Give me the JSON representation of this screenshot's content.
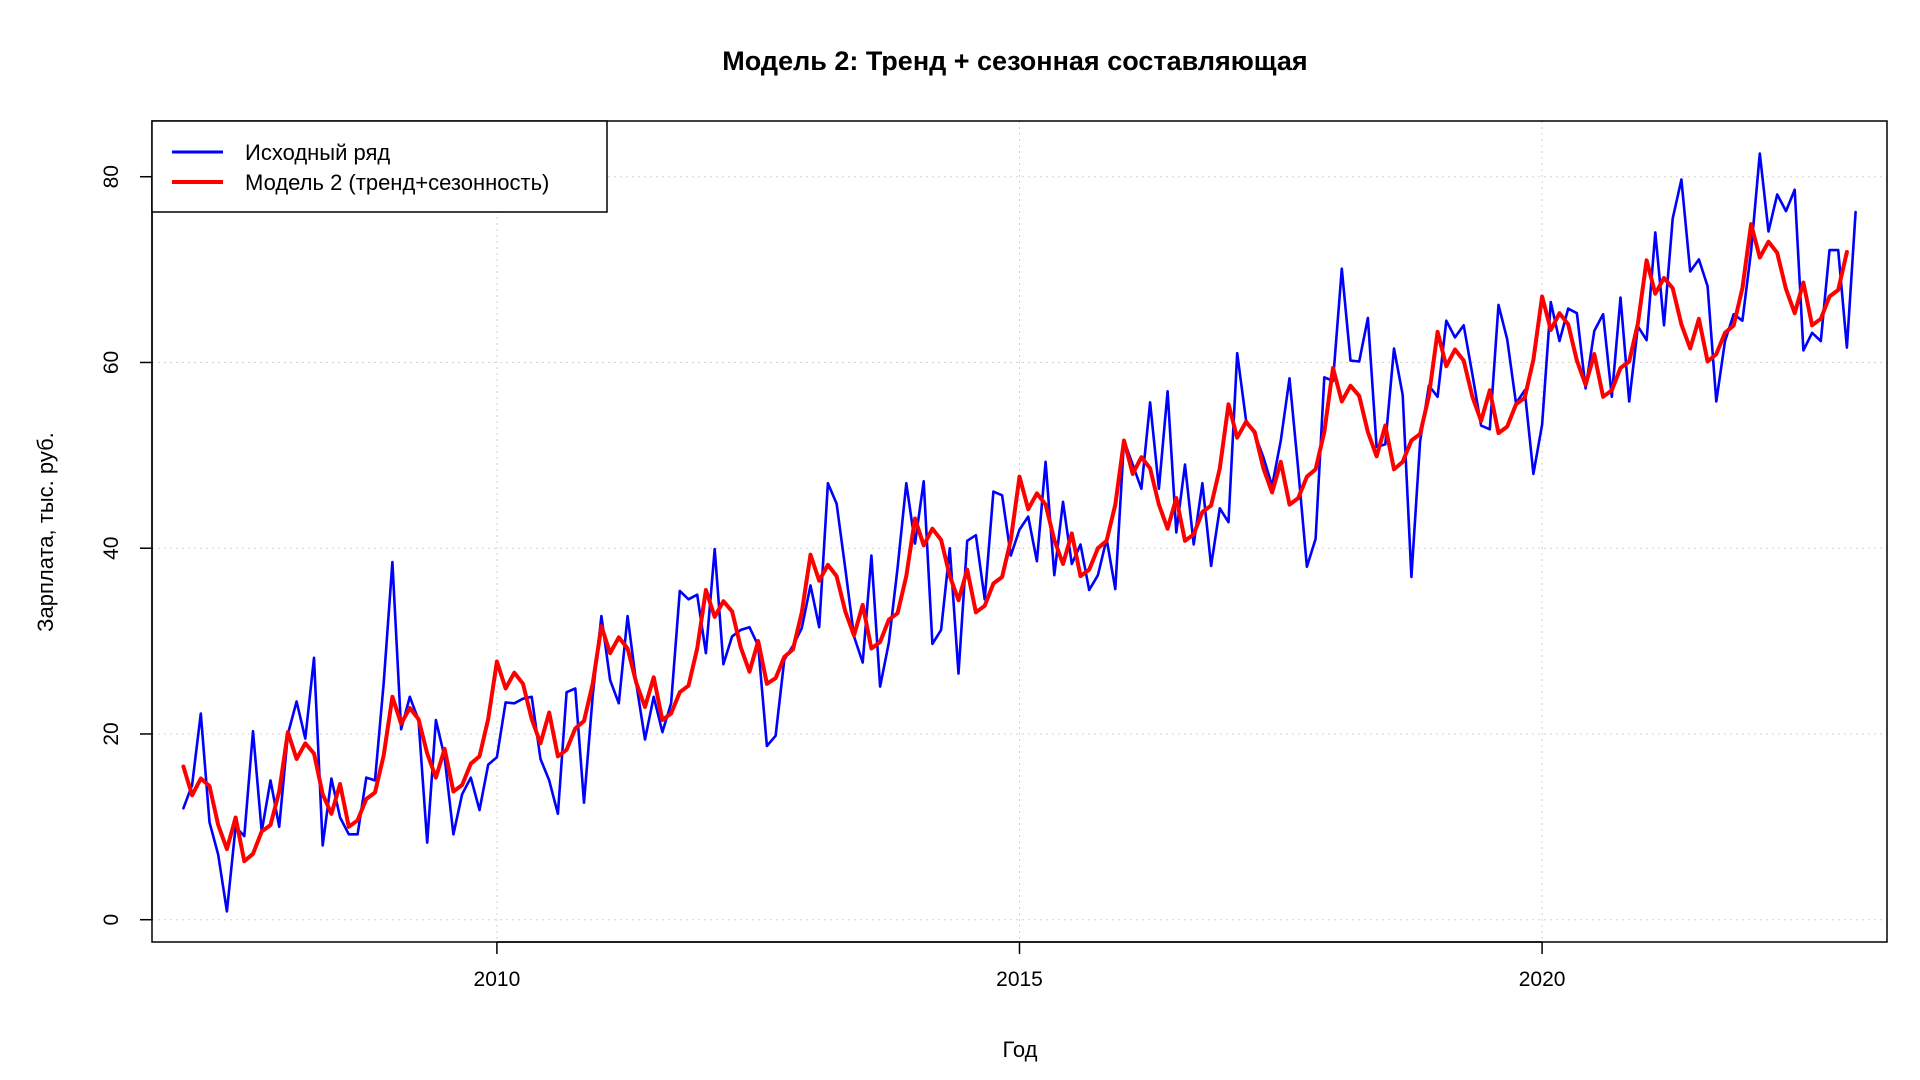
{
  "chart_data": {
    "type": "line",
    "title": "Модель 2: Тренд + сезонная составляющая",
    "xlabel": "Год",
    "ylabel": "Зарплата, тыс. руб.",
    "xlim": [
      2006.7,
      2023.3
    ],
    "ylim": [
      -2.4,
      86
    ],
    "x_ticks": [
      2010,
      2015,
      2020
    ],
    "y_ticks": [
      0,
      20,
      40,
      60,
      80
    ],
    "grid": true,
    "legend_position": "top-left",
    "x_start": 2007.0,
    "x_step": 0.083333,
    "series": [
      {
        "name": "Исходный ряд",
        "color": "#0000ff",
        "values": [
          12.0,
          14.5,
          22.2,
          10.5,
          7.0,
          0.9,
          10.0,
          9.0,
          20.3,
          9.5,
          15.0,
          10.0,
          20.0,
          23.5,
          19.5,
          28.2,
          8.0,
          15.2,
          11.0,
          9.2,
          9.2,
          15.3,
          15.0,
          25.5,
          38.5,
          20.5,
          24.0,
          21.5,
          8.3,
          21.5,
          17.5,
          9.2,
          13.5,
          15.3,
          11.8,
          16.7,
          17.5,
          23.4,
          23.3,
          23.8,
          24.0,
          17.3,
          15.0,
          11.4,
          24.5,
          24.9,
          12.6,
          24.1,
          32.7,
          25.8,
          23.3,
          32.7,
          25.4,
          19.4,
          24.0,
          20.2,
          23.3,
          35.4,
          34.5,
          35.0,
          28.7,
          39.9,
          27.5,
          30.5,
          31.2,
          31.5,
          29.5,
          18.7,
          19.8,
          28.0,
          29.5,
          31.4,
          36.0,
          31.5,
          47.0,
          44.8,
          37.8,
          30.5,
          27.7,
          39.2,
          25.1,
          29.8,
          37.9,
          47.0,
          40.5,
          47.2,
          29.7,
          31.2,
          40.0,
          26.5,
          40.8,
          41.4,
          34.5,
          46.1,
          45.7,
          39.2,
          42.0,
          43.4,
          38.6,
          49.3,
          37.1,
          45.0,
          38.3,
          40.4,
          35.5,
          37.1,
          41.0,
          35.6,
          51.6,
          49.0,
          46.4,
          55.7,
          46.4,
          56.9,
          41.7,
          49.0,
          40.4,
          47.0,
          38.1,
          44.3,
          42.8,
          61.0,
          53.8,
          52.3,
          49.8,
          46.7,
          51.6,
          58.3,
          48.5,
          38.0,
          41.0,
          58.4,
          58.0,
          70.1,
          60.2,
          60.1,
          64.8,
          50.9,
          51.2,
          61.5,
          56.5,
          36.9,
          51.5,
          57.5,
          56.3,
          64.5,
          62.7,
          64.0,
          58.7,
          53.2,
          52.8,
          66.2,
          62.5,
          55.6,
          57.0,
          48.0,
          53.3,
          66.5,
          62.3,
          65.8,
          65.3,
          57.2,
          63.4,
          65.2,
          56.3,
          67.0,
          55.8,
          63.9,
          62.4,
          74.0,
          64.0,
          75.5,
          79.7,
          69.8,
          71.1,
          68.2,
          55.8,
          62.3,
          65.2,
          64.5,
          72.0,
          82.5,
          74.1,
          78.1,
          76.3,
          78.6,
          61.3,
          63.2,
          62.3,
          72.1,
          72.1,
          61.6,
          76.2
        ]
      },
      {
        "name": "Модель 2 (тренд+сезонность)",
        "color": "#ff0000",
        "values": [
          16.5,
          13.4,
          15.2,
          14.4,
          10.2,
          7.6,
          11.0,
          6.3,
          7.1,
          9.5,
          10.2,
          13.8,
          20.2,
          17.3,
          19.0,
          17.9,
          13.5,
          11.4,
          14.6,
          10.0,
          10.7,
          13.0,
          13.7,
          17.7,
          24.0,
          21.1,
          22.8,
          21.6,
          17.9,
          15.3,
          18.4,
          13.8,
          14.5,
          16.8,
          17.6,
          21.6,
          27.8,
          24.9,
          26.6,
          25.4,
          21.6,
          19.0,
          22.3,
          17.6,
          18.3,
          20.6,
          21.4,
          25.4,
          31.6,
          28.7,
          30.4,
          29.2,
          25.5,
          22.9,
          26.1,
          21.5,
          22.2,
          24.5,
          25.2,
          29.2,
          35.5,
          32.6,
          34.3,
          33.2,
          29.3,
          26.7,
          30.0,
          25.4,
          26.0,
          28.3,
          29.1,
          33.1,
          39.3,
          36.5,
          38.2,
          37.0,
          33.2,
          30.6,
          33.9,
          29.2,
          29.9,
          32.3,
          33.0,
          37.0,
          43.2,
          40.3,
          42.1,
          40.9,
          37.0,
          34.4,
          37.7,
          33.1,
          33.8,
          36.2,
          36.9,
          40.9,
          47.7,
          44.2,
          45.9,
          44.7,
          40.9,
          38.3,
          41.6,
          37.0,
          37.7,
          40.0,
          40.8,
          44.7,
          51.6,
          48.0,
          49.8,
          48.6,
          44.7,
          42.1,
          45.4,
          40.8,
          41.5,
          43.9,
          44.6,
          48.6,
          55.5,
          51.9,
          53.6,
          52.5,
          48.6,
          46.0,
          49.3,
          44.7,
          45.4,
          47.7,
          48.5,
          52.5,
          59.4,
          55.8,
          57.5,
          56.4,
          52.5,
          49.9,
          53.2,
          48.5,
          49.3,
          51.6,
          52.3,
          56.4,
          63.3,
          59.6,
          61.4,
          60.2,
          56.3,
          53.7,
          57.0,
          52.4,
          53.1,
          55.5,
          56.2,
          60.3,
          67.1,
          63.5,
          65.3,
          64.1,
          60.2,
          57.6,
          60.9,
          56.3,
          57.0,
          59.4,
          60.1,
          64.2,
          71.0,
          67.4,
          69.1,
          68.0,
          64.1,
          61.5,
          64.7,
          60.1,
          60.9,
          63.2,
          64.0,
          68.0,
          74.9,
          71.3,
          73.0,
          71.8,
          67.9,
          65.3,
          68.6,
          64.0,
          64.7,
          67.1,
          67.8,
          71.9
        ]
      }
    ]
  }
}
